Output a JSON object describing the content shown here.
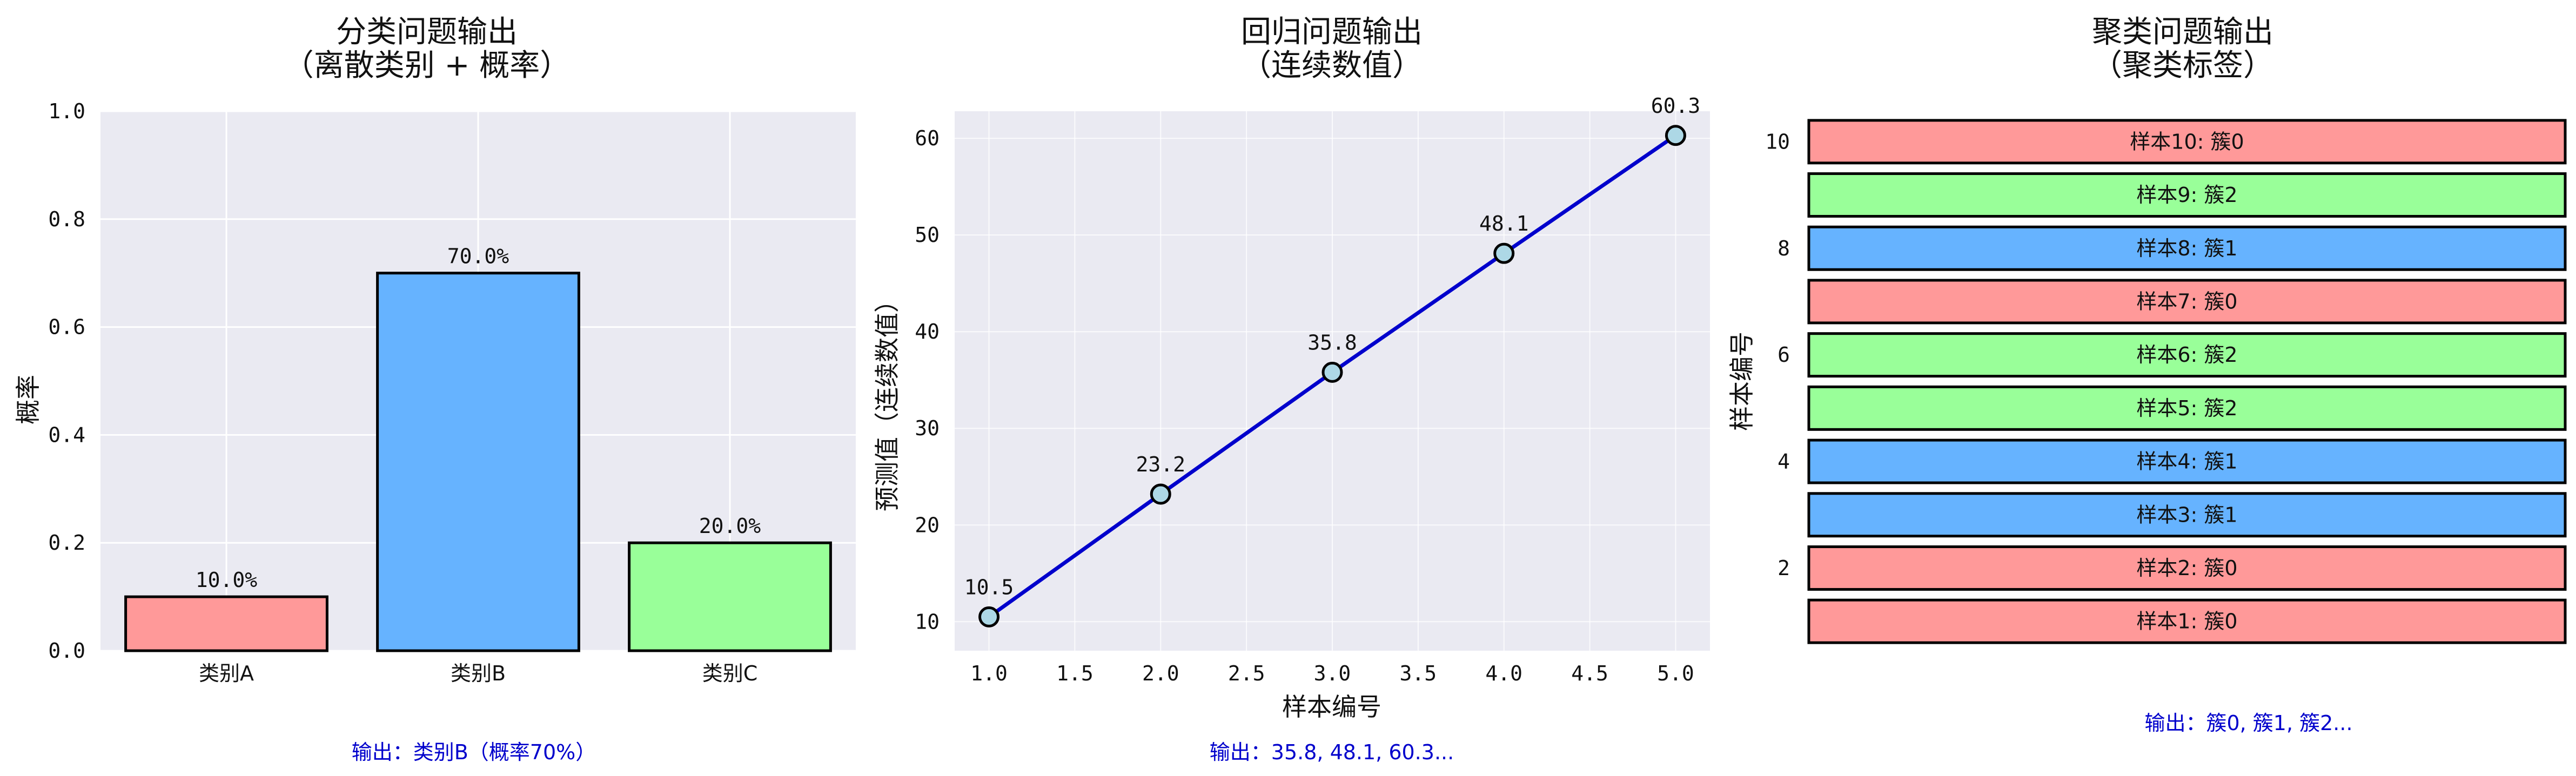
{
  "chart_data": [
    {
      "type": "bar",
      "title_line1": "分类问题输出",
      "title_line2": "（离散类别 + 概率）",
      "ylabel": "概率",
      "ylim": [
        0,
        1.0
      ],
      "yticks": [
        "0.0",
        "0.2",
        "0.4",
        "0.6",
        "0.8",
        "1.0"
      ],
      "categories": [
        "类别A",
        "类别B",
        "类别C"
      ],
      "values": [
        0.1,
        0.7,
        0.2
      ],
      "value_labels": [
        "10.0%",
        "70.0%",
        "20.0%"
      ],
      "colors": [
        "#ff9999",
        "#66b3ff",
        "#99ff99"
      ],
      "note": "输出：类别B（概率70%）",
      "grid": true
    },
    {
      "type": "line",
      "title_line1": "回归问题输出",
      "title_line2": "（连续数值）",
      "xlabel": "样本编号",
      "ylabel": "预测值（连续数值）",
      "x": [
        1,
        2,
        3,
        4,
        5
      ],
      "y": [
        10.5,
        23.2,
        35.8,
        48.1,
        60.3
      ],
      "value_labels": [
        "10.5",
        "23.2",
        "35.8",
        "48.1",
        "60.3"
      ],
      "xticks": [
        "1.0",
        "1.5",
        "2.0",
        "2.5",
        "3.0",
        "3.5",
        "4.0",
        "4.5",
        "5.0"
      ],
      "yticks": [
        "10",
        "20",
        "30",
        "40",
        "50",
        "60"
      ],
      "line_color": "#0000cc",
      "marker_color": "#add8e6",
      "note": "输出：35.8, 48.1, 60.3...",
      "grid": true
    },
    {
      "type": "bar",
      "orientation": "horizontal",
      "title_line1": "聚类问题输出",
      "title_line2": "（聚类标签）",
      "ylabel": "样本编号",
      "yticks": [
        "2",
        "4",
        "6",
        "8",
        "10"
      ],
      "samples": [
        1,
        2,
        3,
        4,
        5,
        6,
        7,
        8,
        9,
        10
      ],
      "clusters": [
        0,
        0,
        1,
        1,
        2,
        2,
        0,
        1,
        2,
        0
      ],
      "bar_labels": [
        "样本1: 簇0",
        "样本2: 簇0",
        "样本3: 簇1",
        "样本4: 簇1",
        "样本5: 簇2",
        "样本6: 簇2",
        "样本7: 簇0",
        "样本8: 簇1",
        "样本9: 簇2",
        "样本10: 簇0"
      ],
      "cluster_colors": [
        "#ff9999",
        "#66b3ff",
        "#99ff99"
      ],
      "note": "输出：簇0, 簇1, 簇2..."
    }
  ]
}
